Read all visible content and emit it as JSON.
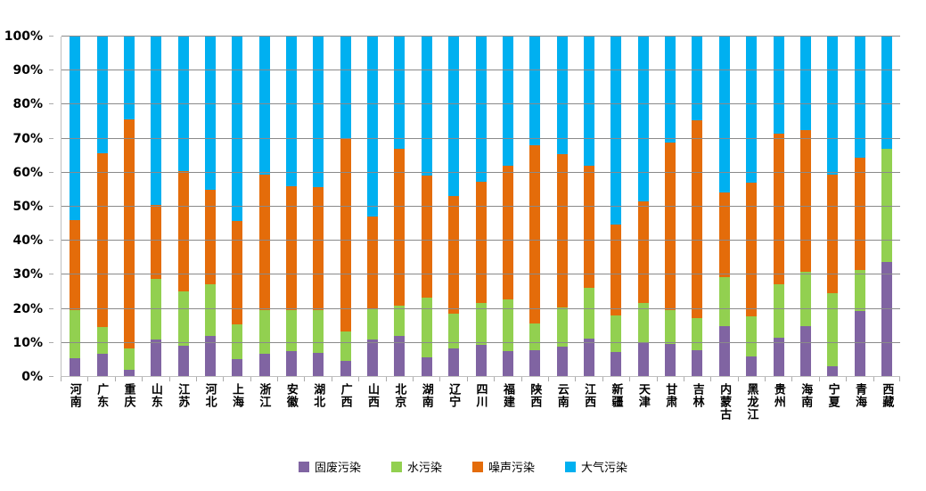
{
  "chart_data": {
    "type": "bar",
    "subtype": "stacked-100-percent",
    "title": "",
    "xlabel": "",
    "ylabel": "",
    "ylim": [
      0,
      100
    ],
    "grid": true,
    "legend_position": "bottom",
    "bar_orientation": "vertical",
    "yticks": [
      "0%",
      "10%",
      "20%",
      "30%",
      "40%",
      "50%",
      "60%",
      "70%",
      "80%",
      "90%",
      "100%"
    ],
    "categories": [
      "河南",
      "广东",
      "重庆",
      "山东",
      "江苏",
      "河北",
      "上海",
      "浙江",
      "安徽",
      "湖北",
      "广西",
      "山西",
      "北京",
      "湖南",
      "辽宁",
      "四川",
      "福建",
      "陕西",
      "云南",
      "江西",
      "新疆",
      "天津",
      "甘肃",
      "吉林",
      "内蒙古",
      "黑龙江",
      "贵州",
      "海南",
      "宁夏",
      "青海",
      "西藏"
    ],
    "series": [
      {
        "name": "固废污染",
        "color": "#8064A2",
        "values": [
          5.3,
          6.6,
          1.9,
          10.7,
          9.0,
          11.7,
          5.0,
          6.6,
          7.4,
          6.9,
          4.5,
          10.8,
          11.7,
          5.4,
          8.1,
          9.1,
          7.4,
          7.6,
          8.6,
          11.1,
          7.2,
          10.0,
          9.4,
          7.5,
          14.6,
          5.7,
          11.3,
          14.7,
          3.0,
          19.1,
          33.5
        ]
      },
      {
        "name": "水污染",
        "color": "#92D050",
        "values": [
          14.0,
          7.9,
          6.2,
          17.9,
          16.0,
          15.3,
          10.1,
          12.9,
          12.1,
          12.4,
          8.7,
          8.9,
          9.1,
          17.6,
          10.4,
          12.4,
          15.2,
          7.8,
          11.6,
          15.0,
          10.6,
          11.6,
          10.1,
          9.5,
          14.5,
          11.9,
          15.7,
          15.9,
          21.3,
          12.1,
          33.5
        ]
      },
      {
        "name": "噪声污染",
        "color": "#E46C0A",
        "values": [
          26.7,
          51.1,
          67.4,
          21.9,
          35.3,
          27.8,
          30.6,
          39.7,
          36.4,
          36.3,
          56.7,
          27.3,
          46.1,
          36.0,
          34.6,
          35.8,
          39.3,
          52.7,
          45.2,
          35.9,
          26.7,
          29.9,
          49.3,
          58.2,
          24.9,
          39.4,
          44.3,
          41.9,
          35.0,
          33.2,
          0.0
        ]
      },
      {
        "name": "大气污染",
        "color": "#00B0F0",
        "values": [
          54.0,
          34.4,
          24.5,
          49.5,
          39.7,
          45.2,
          54.3,
          40.8,
          44.1,
          44.4,
          30.1,
          53.0,
          33.1,
          41.0,
          46.9,
          42.7,
          38.1,
          31.9,
          34.6,
          38.0,
          55.5,
          48.5,
          31.2,
          24.8,
          46.0,
          43.0,
          28.7,
          27.5,
          40.7,
          35.6,
          33.0
        ]
      }
    ]
  },
  "colors": {
    "background": "#FFFFFF",
    "gridline": "#8A8A8A",
    "axis_line": "#BFBFBF",
    "tick_mark": "#ABABAB",
    "text": "#000000"
  }
}
